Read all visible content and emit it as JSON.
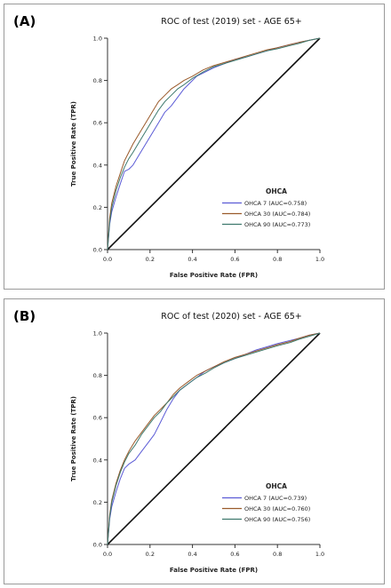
{
  "chart_data": [
    {
      "type": "line",
      "panel_label": "(A)",
      "title": "ROC of test (2019) set -  AGE 65+",
      "xlabel": "False Positive Rate (FPR)",
      "ylabel": "True Positive Rate (TPR)",
      "xlim": [
        0,
        1
      ],
      "ylim": [
        0,
        1
      ],
      "xticks": [
        "0.0",
        "0.2",
        "0.4",
        "0.6",
        "0.8",
        "1.0"
      ],
      "yticks": [
        "0.0",
        "0.2",
        "0.4",
        "0.6",
        "0.8",
        "1.0"
      ],
      "grid": false,
      "legend_title": "OHCA",
      "legend_position": "bottom-right",
      "diagonal": true,
      "series": [
        {
          "name": "OHCA  7 (AUC=0.758)",
          "color": "#5b5bd6",
          "x": [
            0,
            0.01,
            0.02,
            0.04,
            0.06,
            0.08,
            0.1,
            0.12,
            0.15,
            0.18,
            0.21,
            0.24,
            0.27,
            0.3,
            0.33,
            0.36,
            0.39,
            0.42,
            0.46,
            0.5,
            0.55,
            0.6,
            0.65,
            0.7,
            0.75,
            0.8,
            0.86,
            0.9,
            0.95,
            1.0
          ],
          "y": [
            0,
            0.12,
            0.18,
            0.25,
            0.31,
            0.37,
            0.38,
            0.4,
            0.45,
            0.5,
            0.55,
            0.6,
            0.65,
            0.68,
            0.72,
            0.76,
            0.79,
            0.82,
            0.84,
            0.86,
            0.88,
            0.9,
            0.91,
            0.925,
            0.94,
            0.955,
            0.97,
            0.98,
            0.99,
            1.0
          ]
        },
        {
          "name": "OHCA 30 (AUC=0.784)",
          "color": "#9a5a2a",
          "x": [
            0,
            0.01,
            0.02,
            0.04,
            0.06,
            0.08,
            0.1,
            0.12,
            0.15,
            0.18,
            0.21,
            0.24,
            0.27,
            0.3,
            0.33,
            0.36,
            0.4,
            0.45,
            0.5,
            0.55,
            0.6,
            0.65,
            0.7,
            0.75,
            0.8,
            0.86,
            0.9,
            0.95,
            1.0
          ],
          "y": [
            0,
            0.15,
            0.22,
            0.3,
            0.36,
            0.42,
            0.46,
            0.5,
            0.55,
            0.6,
            0.65,
            0.7,
            0.73,
            0.76,
            0.78,
            0.8,
            0.82,
            0.85,
            0.87,
            0.885,
            0.9,
            0.915,
            0.93,
            0.945,
            0.955,
            0.97,
            0.98,
            0.99,
            1.0
          ]
        },
        {
          "name": "OHCA 90 (AUC=0.773)",
          "color": "#3f7a6e",
          "x": [
            0,
            0.01,
            0.02,
            0.04,
            0.06,
            0.08,
            0.1,
            0.12,
            0.15,
            0.18,
            0.21,
            0.24,
            0.27,
            0.3,
            0.33,
            0.36,
            0.4,
            0.45,
            0.5,
            0.55,
            0.6,
            0.65,
            0.7,
            0.75,
            0.8,
            0.86,
            0.9,
            0.95,
            1.0
          ],
          "y": [
            0,
            0.13,
            0.2,
            0.28,
            0.34,
            0.39,
            0.43,
            0.46,
            0.51,
            0.56,
            0.61,
            0.66,
            0.7,
            0.73,
            0.76,
            0.78,
            0.81,
            0.84,
            0.865,
            0.88,
            0.895,
            0.91,
            0.925,
            0.94,
            0.95,
            0.965,
            0.975,
            0.99,
            1.0
          ]
        }
      ]
    },
    {
      "type": "line",
      "panel_label": "(B)",
      "title": "ROC of test (2020) set -  AGE 65+",
      "xlabel": "False Positive Rate (FPR)",
      "ylabel": "True Positive Rate (TPR)",
      "xlim": [
        0,
        1
      ],
      "ylim": [
        0,
        1
      ],
      "xticks": [
        "0.0",
        "0.2",
        "0.4",
        "0.6",
        "0.8",
        "1.0"
      ],
      "yticks": [
        "0.0",
        "0.2",
        "0.4",
        "0.6",
        "0.8",
        "1.0"
      ],
      "grid": false,
      "legend_title": "OHCA",
      "legend_position": "bottom-right",
      "diagonal": true,
      "series": [
        {
          "name": "OHCA  7 (AUC=0.739)",
          "color": "#5b5bd6",
          "x": [
            0,
            0.01,
            0.02,
            0.04,
            0.06,
            0.08,
            0.1,
            0.13,
            0.16,
            0.19,
            0.22,
            0.25,
            0.28,
            0.31,
            0.34,
            0.38,
            0.42,
            0.46,
            0.5,
            0.55,
            0.6,
            0.65,
            0.7,
            0.75,
            0.8,
            0.86,
            0.9,
            0.95,
            1.0
          ],
          "y": [
            0,
            0.12,
            0.18,
            0.25,
            0.31,
            0.36,
            0.38,
            0.4,
            0.44,
            0.48,
            0.52,
            0.58,
            0.64,
            0.69,
            0.73,
            0.76,
            0.79,
            0.82,
            0.84,
            0.86,
            0.88,
            0.9,
            0.92,
            0.935,
            0.95,
            0.965,
            0.975,
            0.99,
            1.0
          ]
        },
        {
          "name": "OHCA 30 (AUC=0.760)",
          "color": "#9a5a2a",
          "x": [
            0,
            0.01,
            0.02,
            0.04,
            0.06,
            0.08,
            0.1,
            0.13,
            0.16,
            0.19,
            0.22,
            0.25,
            0.28,
            0.31,
            0.34,
            0.38,
            0.42,
            0.46,
            0.5,
            0.55,
            0.6,
            0.65,
            0.7,
            0.75,
            0.8,
            0.86,
            0.9,
            0.95,
            1.0
          ],
          "y": [
            0,
            0.14,
            0.21,
            0.29,
            0.35,
            0.4,
            0.44,
            0.49,
            0.53,
            0.57,
            0.61,
            0.64,
            0.67,
            0.71,
            0.74,
            0.77,
            0.8,
            0.82,
            0.84,
            0.865,
            0.885,
            0.9,
            0.915,
            0.93,
            0.945,
            0.96,
            0.975,
            0.99,
            1.0
          ]
        },
        {
          "name": "OHCA 90 (AUC=0.756)",
          "color": "#3f7a6e",
          "x": [
            0,
            0.01,
            0.02,
            0.04,
            0.06,
            0.08,
            0.1,
            0.13,
            0.16,
            0.19,
            0.22,
            0.25,
            0.28,
            0.31,
            0.34,
            0.38,
            0.42,
            0.46,
            0.5,
            0.55,
            0.6,
            0.65,
            0.7,
            0.75,
            0.8,
            0.86,
            0.9,
            0.95,
            1.0
          ],
          "y": [
            0,
            0.13,
            0.2,
            0.28,
            0.34,
            0.39,
            0.43,
            0.47,
            0.52,
            0.56,
            0.6,
            0.63,
            0.67,
            0.7,
            0.73,
            0.76,
            0.79,
            0.81,
            0.835,
            0.86,
            0.88,
            0.895,
            0.91,
            0.925,
            0.94,
            0.955,
            0.97,
            0.985,
            1.0
          ]
        }
      ]
    }
  ]
}
